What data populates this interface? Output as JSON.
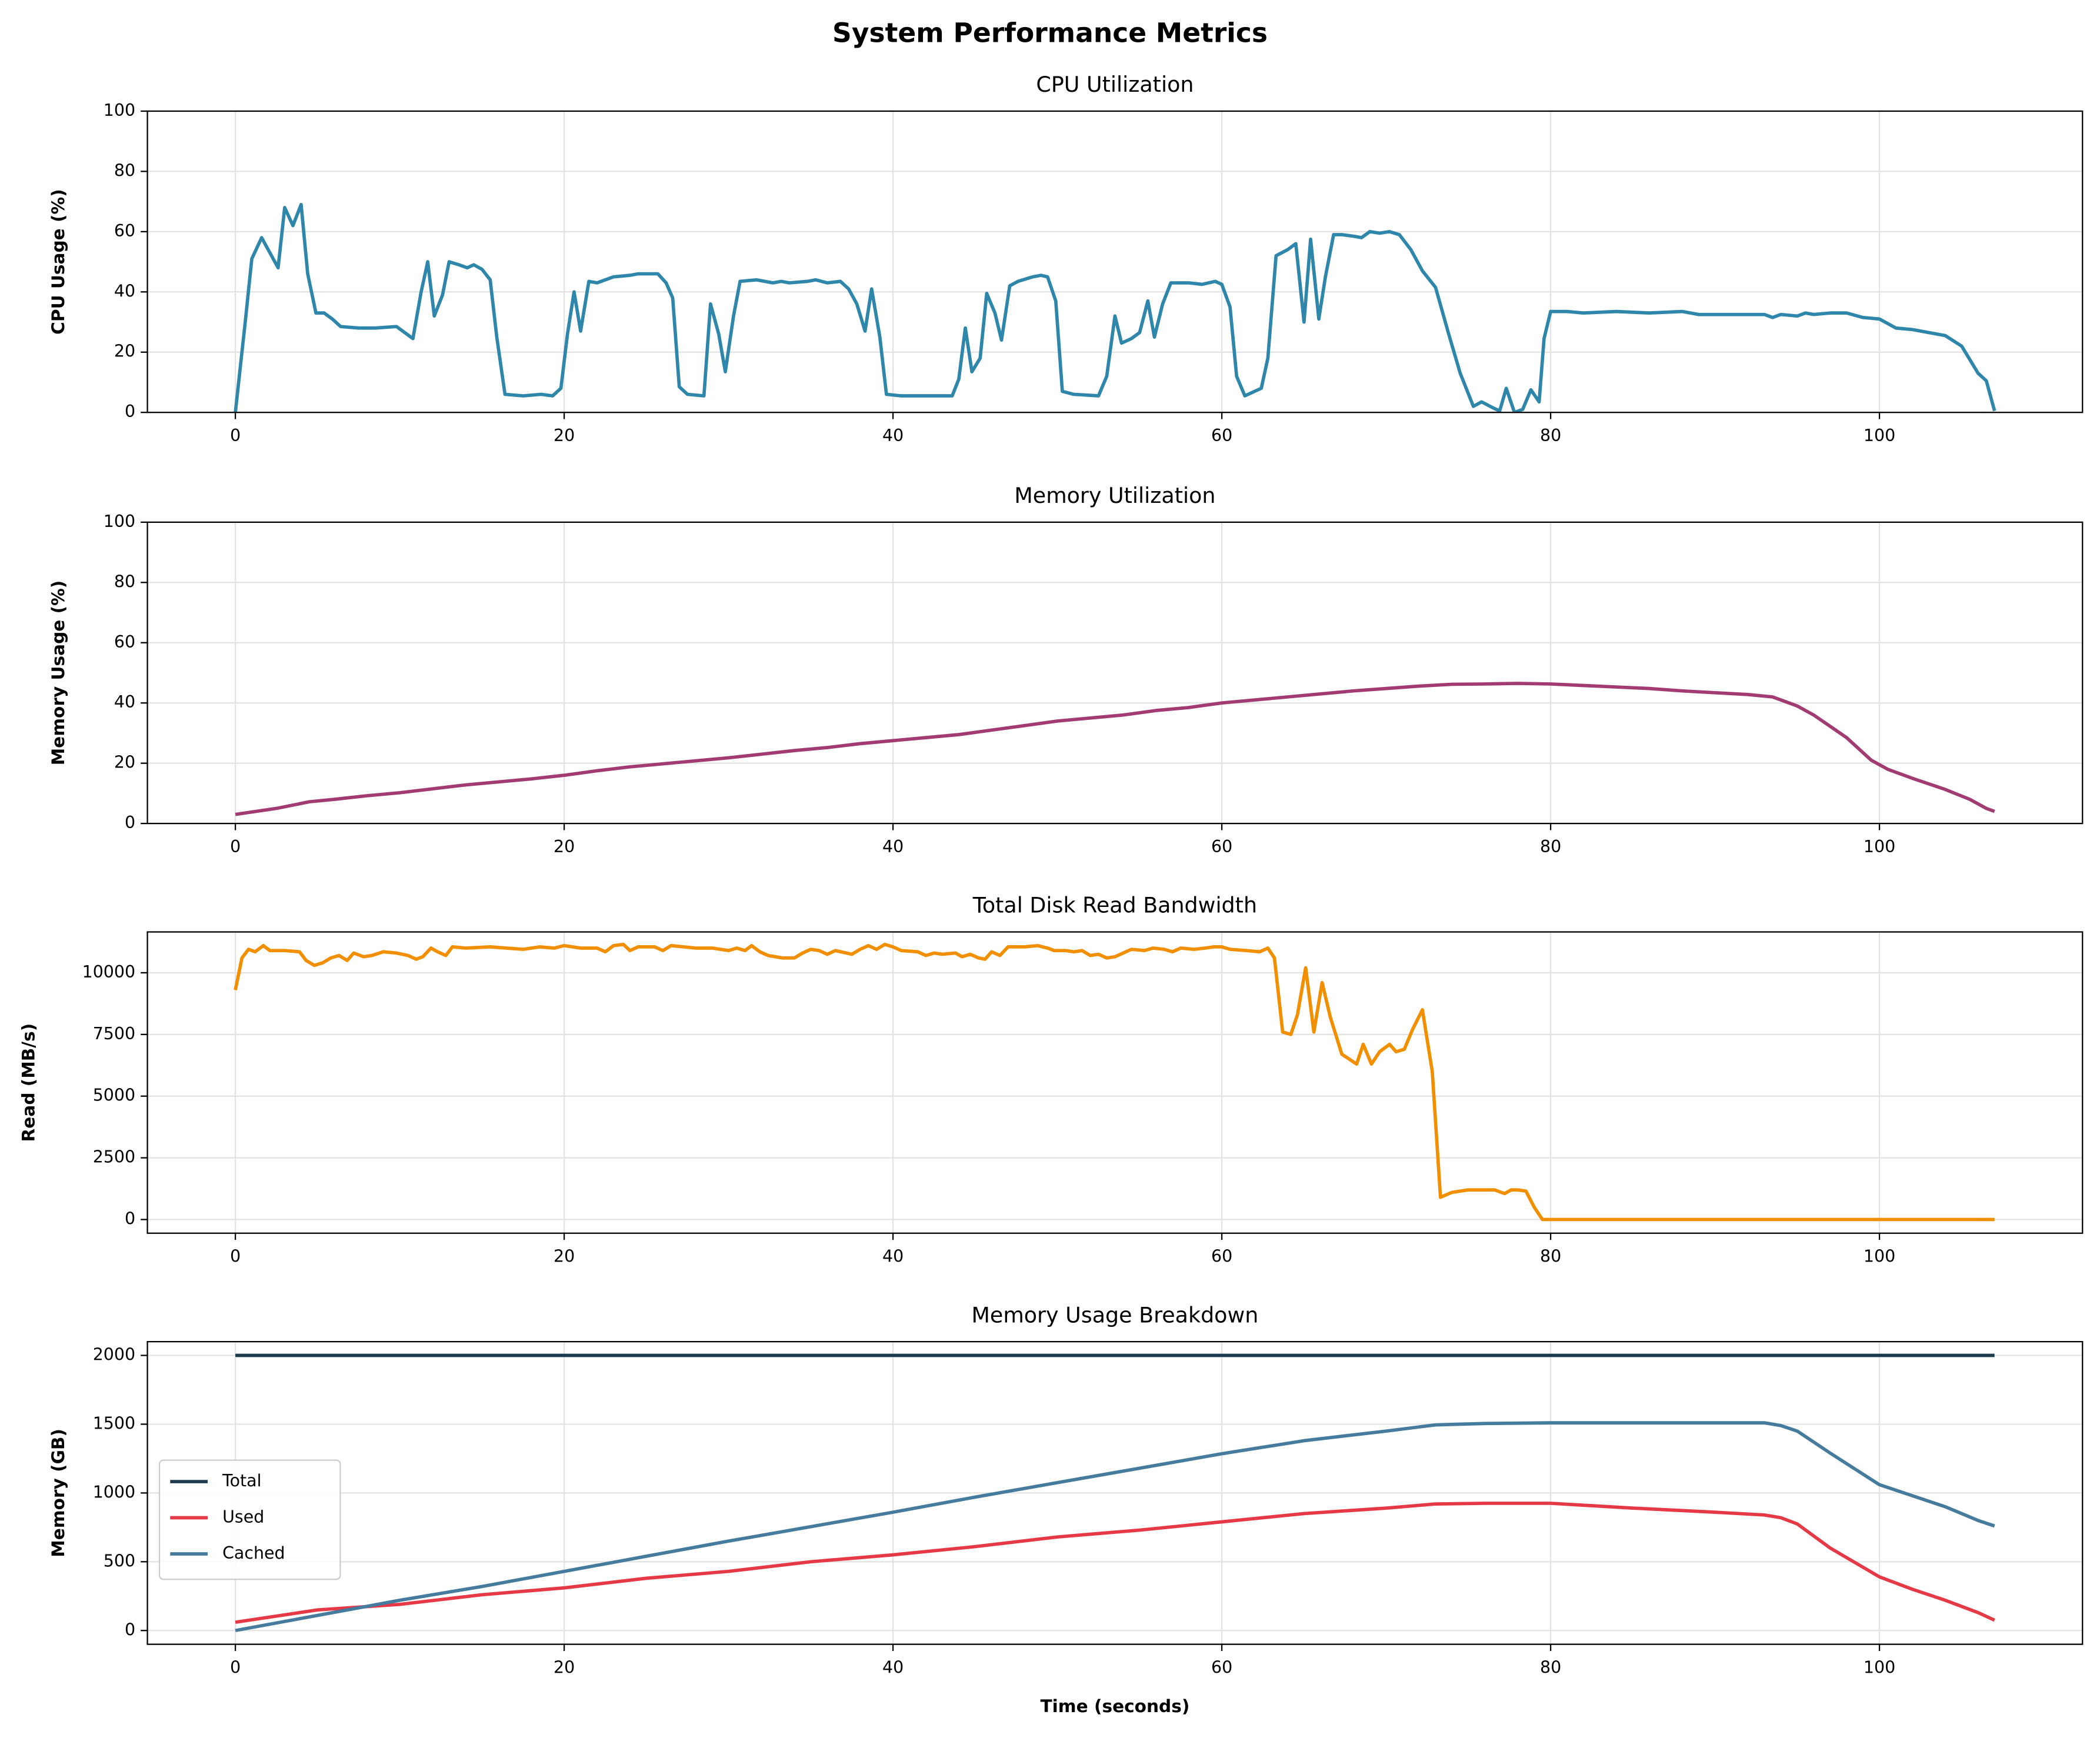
{
  "title": "System Performance Metrics",
  "chart_data": [
    {
      "type": "line",
      "title": "CPU Utilization",
      "ylabel": "CPU Usage (%)",
      "color": "#2e86ab",
      "grid": true,
      "xlim": [
        -5.35,
        112.35
      ],
      "xticks": [
        0,
        20,
        40,
        60,
        80,
        100
      ],
      "ylim": [
        0,
        100
      ],
      "yticks": [
        0,
        20,
        40,
        60,
        80,
        100
      ],
      "x": [
        0,
        0.6,
        1,
        1.6,
        2.6,
        3,
        3.5,
        4,
        4.4,
        4.9,
        5.4,
        5.9,
        6.4,
        7.5,
        8.5,
        9.8,
        10.8,
        11.3,
        11.7,
        12.1,
        12.6,
        13,
        13.6,
        14.1,
        14.5,
        15,
        15.5,
        15.9,
        16.4,
        17.5,
        18.6,
        19.3,
        19.8,
        20.2,
        20.6,
        21,
        21.5,
        22,
        23,
        24,
        24.5,
        25.7,
        26.2,
        26.6,
        27,
        27.5,
        28.5,
        28.9,
        29.4,
        29.8,
        30.3,
        30.7,
        31.7,
        32.7,
        33.2,
        33.7,
        34.8,
        35.3,
        36,
        36.8,
        37.3,
        37.8,
        38.3,
        38.7,
        39.2,
        39.6,
        40.5,
        43.6,
        44,
        44.4,
        44.8,
        45.3,
        45.7,
        46.2,
        46.6,
        47.1,
        47.6,
        48.5,
        49,
        49.4,
        49.9,
        50.3,
        51,
        52.5,
        53,
        53.5,
        53.9,
        54.5,
        55,
        55.5,
        55.9,
        56.4,
        56.9,
        58,
        58.8,
        59.6,
        60,
        60.5,
        60.9,
        61.4,
        62,
        62.4,
        62.8,
        63.3,
        64,
        64.5,
        65,
        65.4,
        65.9,
        66.3,
        66.8,
        67.3,
        68,
        68.5,
        69,
        69.6,
        70.2,
        70.8,
        71.5,
        72.2,
        73,
        73.8,
        74.5,
        75.3,
        75.8,
        76.5,
        76.9,
        77.3,
        77.8,
        78.3,
        78.8,
        79.3,
        79.6,
        80,
        81,
        82,
        84,
        86,
        88,
        89,
        91,
        93,
        93.5,
        94,
        95,
        95.5,
        96,
        97,
        98,
        99,
        100,
        101,
        102,
        103,
        104,
        105,
        106,
        106.5,
        107
      ],
      "values": [
        0,
        30,
        51,
        58,
        48,
        68,
        62,
        69,
        46,
        33,
        33,
        31,
        28.5,
        28,
        28,
        28.5,
        24.5,
        40,
        50,
        32,
        39,
        50,
        49,
        48,
        49,
        47.5,
        44,
        25,
        6,
        5.5,
        6,
        5.5,
        8,
        26,
        40,
        27,
        43.5,
        43,
        45,
        45.5,
        46,
        46,
        43,
        38,
        8.5,
        6,
        5.5,
        36,
        26,
        13.5,
        32,
        43.5,
        44,
        43,
        43.5,
        43,
        43.5,
        44,
        43,
        43.5,
        41,
        36,
        27,
        41,
        25,
        6,
        5.5,
        5.5,
        11,
        28,
        13.5,
        18,
        39.5,
        33,
        24,
        42,
        43.5,
        45,
        45.5,
        45,
        37,
        7,
        6,
        5.5,
        12,
        32,
        23,
        24.5,
        26.5,
        37,
        25,
        36,
        43,
        43,
        42.5,
        43.5,
        42.5,
        35,
        12,
        5.5,
        7,
        8,
        18,
        52,
        54,
        56,
        30,
        57.5,
        31,
        45,
        59,
        59,
        58.5,
        58,
        60,
        59.5,
        60,
        59,
        54,
        47,
        41.5,
        26,
        13,
        2,
        3.5,
        1.5,
        0.5,
        8,
        0,
        1,
        7.5,
        3.5,
        24.5,
        33.5,
        33.5,
        33,
        33.5,
        33,
        33.5,
        32.5,
        32.5,
        32.5,
        31.5,
        32.5,
        32,
        33,
        32.5,
        33,
        33,
        31.5,
        31,
        28,
        27.5,
        26.5,
        25.5,
        22,
        13,
        10.5,
        0.5
      ]
    },
    {
      "type": "line",
      "title": "Memory Utilization",
      "ylabel": "Memory Usage (%)",
      "color": "#a23b72",
      "grid": true,
      "xlim": [
        -5.35,
        112.35
      ],
      "xticks": [
        0,
        20,
        40,
        60,
        80,
        100
      ],
      "ylim": [
        0,
        100
      ],
      "yticks": [
        0,
        20,
        40,
        60,
        80,
        100
      ],
      "x": [
        0,
        2.5,
        4.5,
        6,
        8,
        10,
        12,
        14,
        16,
        18,
        20,
        22,
        24,
        26,
        28,
        30,
        32,
        34,
        36,
        38,
        40,
        42,
        44,
        46,
        48,
        50,
        52,
        54,
        56,
        58,
        60,
        62,
        64,
        66,
        68,
        70,
        72,
        74,
        76,
        78,
        80,
        82,
        84,
        86,
        88,
        90,
        92,
        93.5,
        94.5,
        95,
        96,
        98,
        99.5,
        100.5,
        102,
        104,
        105.5,
        106.5,
        107
      ],
      "values": [
        3,
        5,
        7.2,
        8,
        9.2,
        10.2,
        11.5,
        12.8,
        13.8,
        14.8,
        16,
        17.5,
        18.8,
        19.8,
        20.8,
        21.8,
        23,
        24.2,
        25.2,
        26.5,
        27.5,
        28.5,
        29.5,
        31,
        32.5,
        34,
        35,
        36,
        37.5,
        38.5,
        40,
        41,
        42,
        43,
        44,
        44.8,
        45.6,
        46.2,
        46.3,
        46.5,
        46.3,
        45.8,
        45.3,
        44.8,
        44,
        43.4,
        42.8,
        42,
        40,
        39,
        36,
        28.5,
        21,
        18,
        15,
        11.3,
        8,
        5,
        4
      ]
    },
    {
      "type": "line",
      "title": "Total Disk Read Bandwidth",
      "ylabel": "Read (MB/s)",
      "color": "#f18f01",
      "grid": true,
      "xlim": [
        -5.35,
        112.35
      ],
      "xticks": [
        0,
        20,
        40,
        60,
        80,
        100
      ],
      "ylim": [
        -555,
        11655
      ],
      "yticks": [
        0,
        2500,
        5000,
        7500,
        10000
      ],
      "x": [
        0,
        0.4,
        0.8,
        1.2,
        1.7,
        2.1,
        3,
        3.9,
        4.3,
        4.8,
        5.3,
        5.8,
        6.3,
        6.8,
        7.2,
        7.8,
        8.3,
        9,
        9.8,
        10.5,
        11,
        11.4,
        11.9,
        12.3,
        12.8,
        13.2,
        14,
        15.5,
        16.5,
        17.5,
        18.5,
        19.4,
        20,
        21,
        22,
        22.5,
        23,
        23.6,
        24,
        24.5,
        25.5,
        26,
        26.5,
        28,
        29,
        30,
        30.5,
        31,
        31.4,
        31.9,
        32.4,
        33.3,
        34,
        34.5,
        35,
        35.5,
        36,
        36.5,
        37.5,
        38,
        38.5,
        39,
        39.5,
        40,
        40.5,
        41.5,
        42,
        42.5,
        43,
        43.8,
        44.2,
        44.7,
        45.2,
        45.6,
        46,
        46.5,
        47,
        48,
        48.8,
        49.4,
        49.8,
        50.5,
        51,
        51.5,
        52,
        52.5,
        53,
        53.5,
        54,
        54.5,
        55.3,
        55.8,
        56.5,
        57,
        57.5,
        58.3,
        59,
        59.5,
        60,
        60.5,
        61.5,
        62.3,
        62.8,
        63.2,
        63.7,
        64.2,
        64.6,
        65.1,
        65.6,
        66.1,
        66.6,
        67.3,
        68.2,
        68.6,
        69.1,
        69.6,
        70.2,
        70.6,
        71.1,
        71.6,
        72.2,
        72.8,
        73.3,
        74,
        75,
        76,
        76.6,
        77.2,
        77.6,
        78,
        78.5,
        79,
        79.5,
        107
      ],
      "values": [
        9300,
        10600,
        10950,
        10850,
        11100,
        10900,
        10900,
        10850,
        10500,
        10300,
        10400,
        10600,
        10700,
        10500,
        10800,
        10650,
        10700,
        10850,
        10800,
        10700,
        10550,
        10650,
        11000,
        10850,
        10700,
        11050,
        11000,
        11050,
        11000,
        10950,
        11050,
        11000,
        11100,
        11000,
        11000,
        10850,
        11100,
        11150,
        10900,
        11050,
        11050,
        10900,
        11100,
        11000,
        11000,
        10900,
        11000,
        10900,
        11100,
        10850,
        10700,
        10600,
        10600,
        10800,
        10950,
        10900,
        10750,
        10900,
        10750,
        10950,
        11100,
        10950,
        11150,
        11050,
        10900,
        10850,
        10700,
        10800,
        10750,
        10800,
        10650,
        10750,
        10600,
        10550,
        10850,
        10700,
        11050,
        11050,
        11100,
        11000,
        10900,
        10900,
        10850,
        10900,
        10700,
        10750,
        10600,
        10650,
        10800,
        10950,
        10900,
        11000,
        10950,
        10850,
        11000,
        10950,
        11000,
        11050,
        11050,
        10950,
        10900,
        10850,
        11000,
        10600,
        7600,
        7500,
        8300,
        10200,
        7600,
        9600,
        8200,
        6700,
        6300,
        7100,
        6300,
        6800,
        7100,
        6800,
        6900,
        7700,
        8500,
        6000,
        900,
        1100,
        1200,
        1200,
        1200,
        1050,
        1200,
        1200,
        1150,
        500,
        0,
        0
      ]
    },
    {
      "type": "line",
      "title": "Memory Usage Breakdown",
      "ylabel": "Memory (GB)",
      "xlabel": "Time (seconds)",
      "grid": true,
      "legend": "center left",
      "xlim": [
        -5.35,
        112.35
      ],
      "xticks": [
        0,
        20,
        40,
        60,
        80,
        100
      ],
      "ylim": [
        -100,
        2100
      ],
      "yticks": [
        0,
        500,
        1000,
        1500,
        2000
      ],
      "x": [
        0,
        5,
        10,
        15,
        20,
        25,
        30,
        35,
        40,
        45,
        50,
        55,
        60,
        65,
        70,
        73,
        76,
        80,
        85,
        90,
        93,
        94,
        95,
        97,
        100,
        102,
        104,
        106,
        107
      ],
      "series": [
        {
          "name": "Total",
          "color": "#1d3a4e",
          "values": [
            2000,
            2000,
            2000,
            2000,
            2000,
            2000,
            2000,
            2000,
            2000,
            2000,
            2000,
            2000,
            2000,
            2000,
            2000,
            2000,
            2000,
            2000,
            2000,
            2000,
            2000,
            2000,
            2000,
            2000,
            2000,
            2000,
            2000,
            2000,
            2000
          ]
        },
        {
          "name": "Used",
          "color": "#e63946",
          "values": [
            60,
            150,
            190,
            260,
            310,
            380,
            430,
            500,
            550,
            610,
            680,
            730,
            790,
            850,
            890,
            920,
            925,
            925,
            890,
            860,
            840,
            820,
            775,
            600,
            390,
            300,
            220,
            130,
            75
          ]
        },
        {
          "name": "Cached",
          "color": "#457b9d",
          "values": [
            0,
            110,
            220,
            320,
            430,
            540,
            650,
            755,
            860,
            970,
            1075,
            1180,
            1285,
            1380,
            1450,
            1495,
            1505,
            1510,
            1510,
            1510,
            1510,
            1490,
            1450,
            1290,
            1060,
            980,
            900,
            800,
            760
          ]
        }
      ]
    }
  ]
}
